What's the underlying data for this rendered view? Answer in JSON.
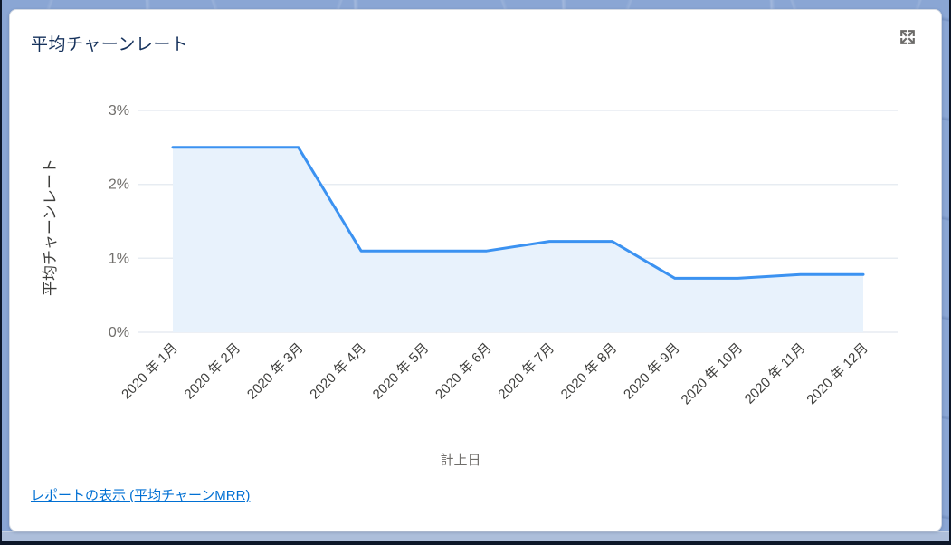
{
  "widget": {
    "title": "平均チャーンレート",
    "report_link_label": "レポートの表示 (平均チャーンMRR)",
    "expand_icon": "expand-arrows-icon"
  },
  "colors": {
    "line": "#3b92f1",
    "fill": "#e8f2fc",
    "grid": "#e7ecf2",
    "tick_text": "#706e6b",
    "axis_text": "#3e3e3c",
    "title_text": "#16325c",
    "link": "#0170d3",
    "frame_navy": "#0d1729",
    "wallpaper_blue": "#8aa6d4",
    "bottom_band": "#adbeda"
  },
  "chart_data": {
    "type": "area",
    "title": "平均チャーンレート",
    "x": [
      "2020 年 1月",
      "2020 年 2月",
      "2020 年 3月",
      "2020 年 4月",
      "2020 年 5月",
      "2020 年 6月",
      "2020 年 7月",
      "2020 年 8月",
      "2020 年 9月",
      "2020 年 10月",
      "2020 年 11月",
      "2020 年 12月"
    ],
    "series": [
      {
        "name": "平均チャーンレート",
        "values": [
          2.5,
          2.5,
          2.5,
          1.1,
          1.1,
          1.1,
          1.23,
          1.23,
          0.73,
          0.73,
          0.78,
          0.78
        ]
      }
    ],
    "xlabel": "計上日",
    "ylabel": "平均チャーンレート",
    "ylim": [
      0,
      3
    ],
    "yticks": [
      {
        "value": 0,
        "label": "0%"
      },
      {
        "value": 1,
        "label": "1%"
      },
      {
        "value": 2,
        "label": "2%"
      },
      {
        "value": 3,
        "label": "3%"
      }
    ],
    "grid": true,
    "legend": false
  }
}
